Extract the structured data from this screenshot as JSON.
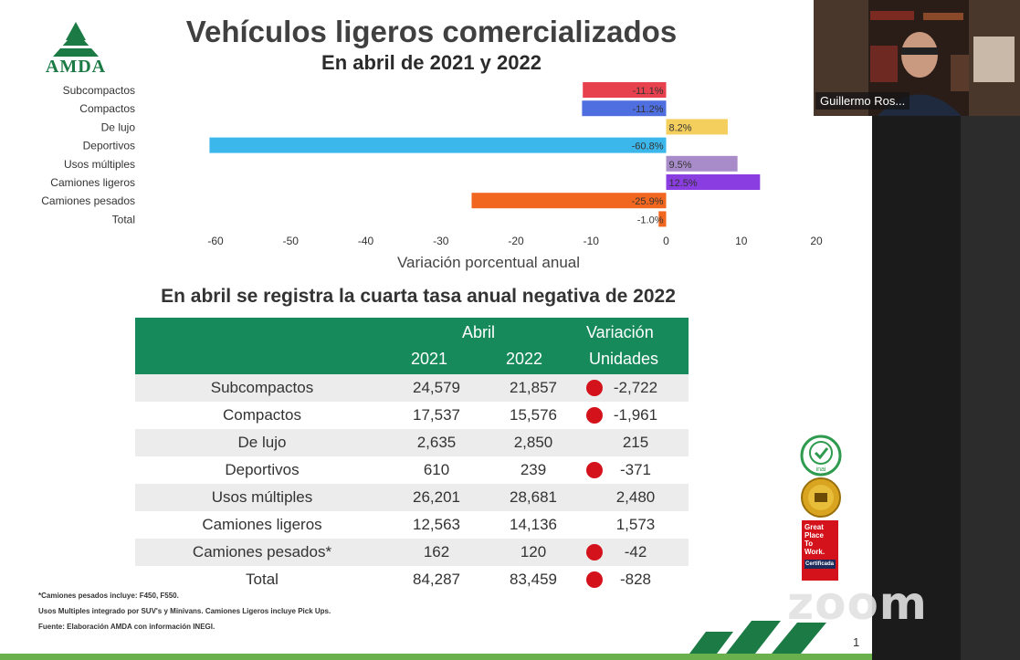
{
  "slide": {
    "title": "Vehículos ligeros comercializados",
    "subtitle": "En abril de 2021 y 2022",
    "logo_text": "AMDA",
    "page_number": "1"
  },
  "chart_data": {
    "type": "bar",
    "orientation": "horizontal",
    "categories": [
      "Subcompactos",
      "Compactos",
      "De lujo",
      "Deportivos",
      "Usos múltiples",
      "Camiones ligeros",
      "Camiones pesados",
      "Total"
    ],
    "values": [
      -11.1,
      -11.2,
      8.2,
      -60.8,
      9.5,
      12.5,
      -25.9,
      -1.0
    ],
    "value_labels": [
      "-11.1%",
      "-11.2%",
      "8.2%",
      "-60.8%",
      "9.5%",
      "12.5%",
      "-25.9%",
      "-1.0%"
    ],
    "colors": [
      "#e8414e",
      "#4f6fe0",
      "#f4cf5e",
      "#3cb7eb",
      "#a88bc9",
      "#8a3de0",
      "#f2671f",
      "#f2671f"
    ],
    "xlim": [
      -60,
      20
    ],
    "xticks": [
      -60,
      -50,
      -40,
      -30,
      -20,
      -10,
      0,
      10,
      20
    ],
    "xlabel": "Variación porcentual anual",
    "grid": false
  },
  "table": {
    "title": "En abril se registra la cuarta tasa anual negativa de 2022",
    "header": {
      "group": "Abril",
      "year1": "2021",
      "year2": "2022",
      "var1": "Variación",
      "var2": "Unidades"
    },
    "rows": [
      {
        "name": "Subcompactos",
        "y2021": "24,579",
        "y2022": "21,857",
        "var": "-2,722",
        "negative": true
      },
      {
        "name": "Compactos",
        "y2021": "17,537",
        "y2022": "15,576",
        "var": "-1,961",
        "negative": true
      },
      {
        "name": "De lujo",
        "y2021": "2,635",
        "y2022": "2,850",
        "var": "215",
        "negative": false
      },
      {
        "name": "Deportivos",
        "y2021": "610",
        "y2022": "239",
        "var": "-371",
        "negative": true
      },
      {
        "name": "Usos múltiples",
        "y2021": "26,201",
        "y2022": "28,681",
        "var": "2,480",
        "negative": false
      },
      {
        "name": "Camiones ligeros",
        "y2021": "12,563",
        "y2022": "14,136",
        "var": "1,573",
        "negative": false
      },
      {
        "name": "Camiones pesados*",
        "y2021": "162",
        "y2022": "120",
        "var": "-42",
        "negative": true
      },
      {
        "name": "Total",
        "y2021": "84,287",
        "y2022": "83,459",
        "var": "-828",
        "negative": true
      }
    ]
  },
  "footnotes": [
    "*Camiones pesados incluye: F450, F550.",
    "Usos Multiples integrado por SUV's y Minivans. Camiones Ligeros incluye Pick Ups.",
    "Fuente: Elaboración AMDA con información INEGI."
  ],
  "badges": {
    "inai": "inai",
    "gptw": [
      "Great",
      "Place",
      "To",
      "Work.",
      "Certificada"
    ]
  },
  "zoom": {
    "watermark": "zoom",
    "participant_name": "Guillermo Ros..."
  }
}
